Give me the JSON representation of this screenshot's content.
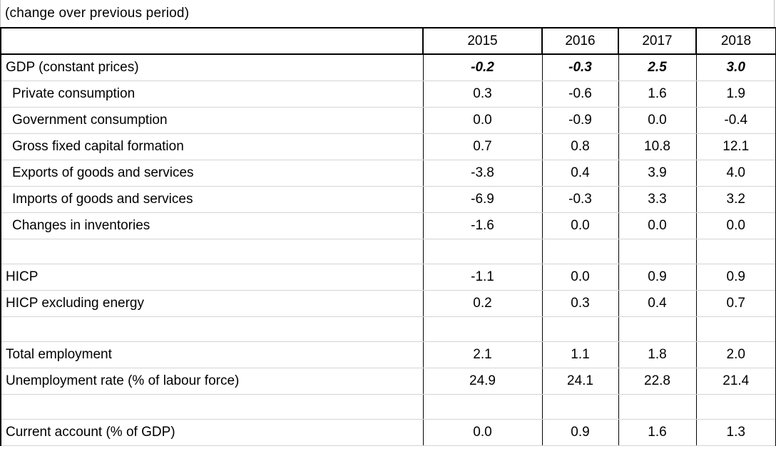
{
  "caption": "(change over previous period)",
  "years": [
    "2015",
    "2016",
    "2017",
    "2018"
  ],
  "rows": [
    {
      "label": "GDP (constant prices)",
      "values": [
        "-0.2",
        "-0.3",
        "2.5",
        "3.0"
      ]
    },
    {
      "label": "Private consumption",
      "values": [
        "0.3",
        "-0.6",
        "1.6",
        "1.9"
      ]
    },
    {
      "label": "Government consumption",
      "values": [
        "0.0",
        "-0.9",
        "0.0",
        "-0.4"
      ]
    },
    {
      "label": "Gross fixed capital formation",
      "values": [
        "0.7",
        "0.8",
        "10.8",
        "12.1"
      ]
    },
    {
      "label": "Exports of goods and services",
      "values": [
        "-3.8",
        "0.4",
        "3.9",
        "4.0"
      ]
    },
    {
      "label": "Imports of goods and services",
      "values": [
        "-6.9",
        "-0.3",
        "3.3",
        "3.2"
      ]
    },
    {
      "label": "Changes in inventories",
      "values": [
        "-1.6",
        "0.0",
        "0.0",
        "0.0"
      ]
    },
    {
      "label": "",
      "values": [
        "",
        "",
        "",
        ""
      ]
    },
    {
      "label": "HICP",
      "values": [
        "-1.1",
        "0.0",
        "0.9",
        "0.9"
      ]
    },
    {
      "label": "HICP excluding energy",
      "values": [
        "0.2",
        "0.3",
        "0.4",
        "0.7"
      ]
    },
    {
      "label": "",
      "values": [
        "",
        "",
        "",
        ""
      ]
    },
    {
      "label": "Total employment",
      "values": [
        "2.1",
        "1.1",
        "1.8",
        "2.0"
      ]
    },
    {
      "label": "Unemployment rate (% of labour force)",
      "values": [
        "24.9",
        "24.1",
        "22.8",
        "21.4"
      ]
    },
    {
      "label": "",
      "values": [
        "",
        "",
        "",
        ""
      ]
    },
    {
      "label": "Current account (% of GDP)",
      "values": [
        "0.0",
        "0.9",
        "1.6",
        "1.3"
      ]
    }
  ]
}
